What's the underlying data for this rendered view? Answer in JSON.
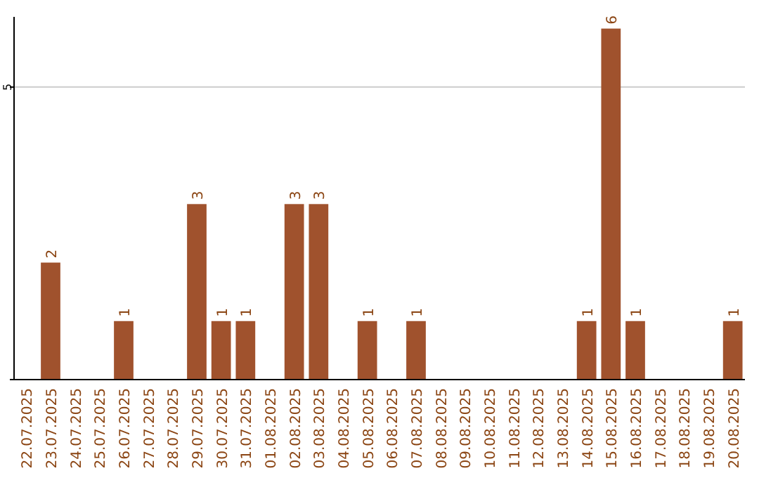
{
  "chart_data": {
    "type": "bar",
    "categories": [
      "22.07.2025",
      "23.07.2025",
      "24.07.2025",
      "25.07.2025",
      "26.07.2025",
      "27.07.2025",
      "28.07.2025",
      "29.07.2025",
      "30.07.2025",
      "31.07.2025",
      "01.08.2025",
      "02.08.2025",
      "03.08.2025",
      "04.08.2025",
      "05.08.2025",
      "06.08.2025",
      "07.08.2025",
      "08.08.2025",
      "09.08.2025",
      "10.08.2025",
      "11.08.2025",
      "12.08.2025",
      "13.08.2025",
      "14.08.2025",
      "15.08.2025",
      "16.08.2025",
      "17.08.2025",
      "18.08.2025",
      "19.08.2025",
      "20.08.2025"
    ],
    "values": [
      0,
      2,
      0,
      0,
      1,
      0,
      0,
      3,
      1,
      1,
      0,
      3,
      3,
      0,
      1,
      0,
      1,
      0,
      0,
      0,
      0,
      0,
      0,
      1,
      6,
      1,
      0,
      0,
      0,
      1
    ],
    "value_labels": [
      null,
      "2",
      null,
      null,
      "1",
      null,
      null,
      "3",
      "1",
      "1",
      null,
      "3",
      "3",
      null,
      "1",
      null,
      "1",
      null,
      null,
      null,
      null,
      null,
      null,
      "1",
      "6",
      "1",
      null,
      null,
      null,
      "1"
    ],
    "color": "#a0522d",
    "ylim": [
      0,
      6.2
    ],
    "yticks": [
      {
        "value": 0,
        "label": null
      },
      5
    ],
    "grid": "y"
  }
}
